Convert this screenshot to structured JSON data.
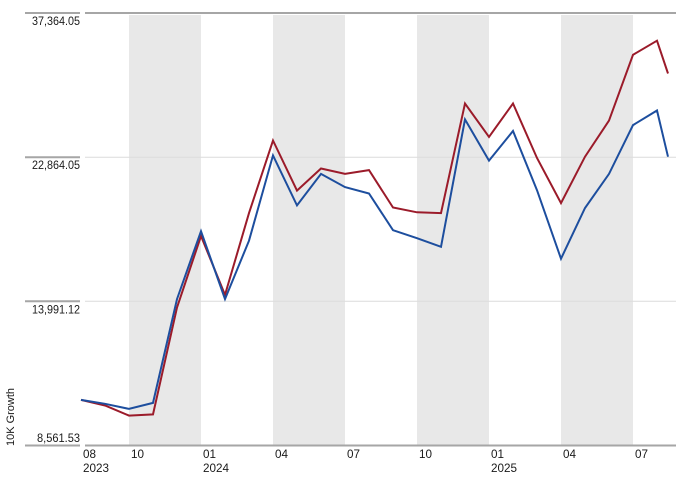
{
  "chart_data": {
    "type": "line",
    "title": "",
    "xlabel": "",
    "ylabel": "10K Growth",
    "scale": "log",
    "ylim": [
      8561.53,
      37364.05
    ],
    "grid": "horizontal",
    "legend": "none",
    "x": [
      "2023-08",
      "2023-09",
      "2023-10",
      "2023-11",
      "2023-12",
      "2024-01",
      "2024-02",
      "2024-03",
      "2024-04",
      "2024-05",
      "2024-06",
      "2024-07",
      "2024-08",
      "2024-09",
      "2024-10",
      "2024-11",
      "2024-12",
      "2025-01",
      "2025-02",
      "2025-03",
      "2025-04",
      "2025-05",
      "2025-06",
      "2025-07",
      "2025-08",
      "2025-09"
    ],
    "x_pos_months": [
      0,
      1,
      2,
      3,
      4,
      5,
      6,
      7,
      8,
      9,
      10,
      11,
      12,
      13,
      14,
      15,
      16,
      17,
      18,
      19,
      20,
      21,
      22,
      23,
      24,
      24.46
    ],
    "series": [
      {
        "id": "dark-red-line",
        "color": "#9b1b2a",
        "values": [
          10000,
          9810,
          9480,
          9520,
          13700,
          17480,
          14300,
          18900,
          24200,
          20400,
          22000,
          21600,
          21880,
          19260,
          18950,
          18900,
          27450,
          24500,
          27450,
          22800,
          19550,
          22900,
          25900,
          32400,
          34000,
          30400
        ]
      },
      {
        "id": "blue-line",
        "color": "#1d4e9e",
        "values": [
          10000,
          9870,
          9700,
          9900,
          14100,
          17770,
          14100,
          17200,
          23000,
          19400,
          21600,
          20650,
          20200,
          17830,
          17350,
          16850,
          26000,
          22600,
          25000,
          20430,
          16180,
          19230,
          21600,
          25500,
          26800,
          22900
        ]
      }
    ],
    "y_ticks": [
      {
        "value": 37364.05,
        "label": "37,364.05"
      },
      {
        "value": 22864.05,
        "label": "22,864.05"
      },
      {
        "value": 13991.12,
        "label": "13,991.12"
      },
      {
        "value": 8561.53,
        "label": "8,561.53"
      }
    ],
    "x_ticks": [
      {
        "month_index": 0,
        "label": "08",
        "year": "2023"
      },
      {
        "month_index": 2,
        "label": "10",
        "year": ""
      },
      {
        "month_index": 5,
        "label": "01",
        "year": "2024"
      },
      {
        "month_index": 8,
        "label": "04",
        "year": ""
      },
      {
        "month_index": 11,
        "label": "07",
        "year": ""
      },
      {
        "month_index": 14,
        "label": "10",
        "year": ""
      },
      {
        "month_index": 17,
        "label": "01",
        "year": "2025"
      },
      {
        "month_index": 20,
        "label": "04",
        "year": ""
      },
      {
        "month_index": 23,
        "label": "07",
        "year": ""
      }
    ],
    "shaded_quarters": [
      [
        2,
        5
      ],
      [
        8,
        11
      ],
      [
        14,
        17
      ],
      [
        20,
        23
      ]
    ],
    "colors": {
      "background": "#ffffff",
      "quarter_band": "#e8e8e8",
      "axis_line": "#a6a6a6",
      "plot_gridline": "#dcdcdc",
      "text": "#1a1a1a"
    }
  }
}
